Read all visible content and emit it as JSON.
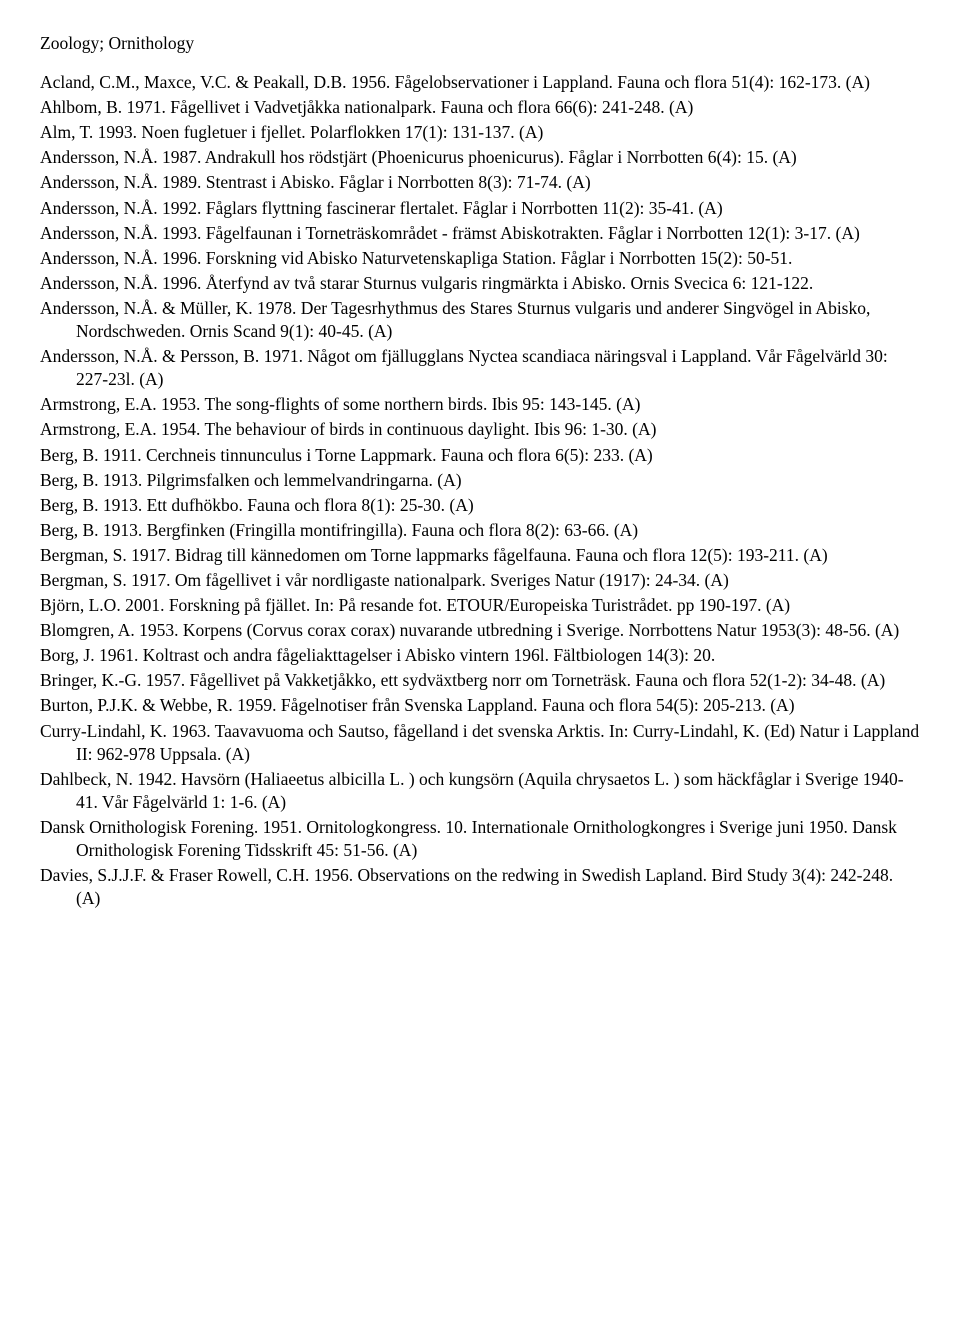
{
  "heading": "Zoology; Ornithology",
  "entries": [
    "Acland, C.M., Maxce, V.C. & Peakall, D.B. 1956. Fågelobservationer i Lappland. Fauna och flora 51(4): 162-173. (A)",
    "Ahlbom, B. 1971. Fågellivet i Vadvetjåkka nationalpark. Fauna och flora 66(6): 241-248. (A)",
    "Alm, T. 1993. Noen fugletuer i fjellet. Polarflokken 17(1): 131-137. (A)",
    "Andersson, N.Å. 1987. Andrakull hos rödstjärt (Phoenicurus phoenicurus). Fåglar i Norrbotten 6(4): 15. (A)",
    "Andersson, N.Å. 1989. Stentrast i Abisko. Fåglar i Norrbotten 8(3): 71-74. (A)",
    "Andersson, N.Å. 1992. Fåglars flyttning fascinerar flertalet. Fåglar i Norrbotten 11(2): 35-41. (A)",
    "Andersson, N.Å. 1993. Fågelfaunan i Torneträskområdet - främst Abiskotrakten. Fåglar i Norrbotten 12(1): 3-17. (A)",
    "Andersson, N.Å. 1996. Forskning vid Abisko Naturvetenskapliga Station. Fåglar i Norrbotten 15(2): 50-51.",
    "Andersson, N.Å. 1996. Återfynd av två starar Sturnus vulgaris ringmärkta i Abisko. Ornis Svecica 6: 121-122.",
    "Andersson, N.Å. & Müller, K. 1978. Der Tagesrhythmus des Stares Sturnus vulgaris und anderer Singvögel in Abisko, Nordschweden. Ornis Scand 9(1): 40-45. (A)",
    "Andersson, N.Å. & Persson, B. 1971. Något om fjällugglans Nyctea scandiaca näringsval i Lappland. Vår Fågelvärld 30: 227-23l. (A)",
    "Armstrong, E.A. 1953. The song-flights of some northern birds. Ibis 95: 143-145. (A)",
    "Armstrong, E.A. 1954. The behaviour of birds in continuous daylight. Ibis 96: 1-30. (A)",
    "Berg, B. 1911. Cerchneis tinnunculus i Torne Lappmark. Fauna och flora 6(5): 233. (A)",
    "Berg, B. 1913. Pilgrimsfalken och lemmelvandringarna. (A)",
    "Berg, B. 1913. Ett dufhökbo. Fauna och flora 8(1): 25-30. (A)",
    "Berg, B. 1913. Bergfinken (Fringilla montifringilla). Fauna och flora 8(2): 63-66. (A)",
    "Bergman, S. 1917. Bidrag till kännedomen om Torne lappmarks fågelfauna. Fauna och flora 12(5): 193-211. (A)",
    "Bergman, S. 1917. Om fågellivet i vår nordligaste nationalpark. Sveriges Natur (1917): 24-34. (A)",
    "Björn, L.O. 2001. Forskning på fjället. In: På resande fot. ETOUR/Europeiska Turistrådet. pp 190-197. (A)",
    "Blomgren, A. 1953. Korpens (Corvus corax corax) nuvarande utbredning i Sverige. Norrbottens Natur 1953(3): 48-56. (A)",
    "Borg, J. 1961. Koltrast och andra fågeliakttagelser i Abisko vintern 196l. Fältbiologen 14(3): 20.",
    "Bringer, K.-G. 1957. Fågellivet på Vakketjåkko, ett sydväxtberg norr om Torneträsk. Fauna och flora 52(1-2): 34-48. (A)",
    "Burton, P.J.K. & Webbe, R. 1959. Fågelnotiser från Svenska Lappland. Fauna och flora 54(5): 205-213. (A)",
    "Curry-Lindahl, K. 1963. Taavavuoma och Sautso, fågelland i det svenska Arktis. In: Curry-Lindahl, K. (Ed) Natur i Lappland II: 962-978 Uppsala. (A)",
    "Dahlbeck, N. 1942. Havsörn (Haliaeetus albicilla L. ) och kungsörn (Aquila chrysaetos L. ) som häckfåglar i Sverige 1940-41. Vår Fågelvärld 1: 1-6. (A)",
    "Dansk Ornithologisk Forening. 1951. Ornitologkongress. 10. Internationale Ornithologkongres i Sverige juni 1950. Dansk Ornithologisk Forening Tidsskrift 45: 51-56. (A)",
    "Davies, S.J.J.F. & Fraser Rowell, C.H. 1956. Observations on the redwing in Swedish Lapland. Bird Study 3(4): 242-248. (A)"
  ]
}
